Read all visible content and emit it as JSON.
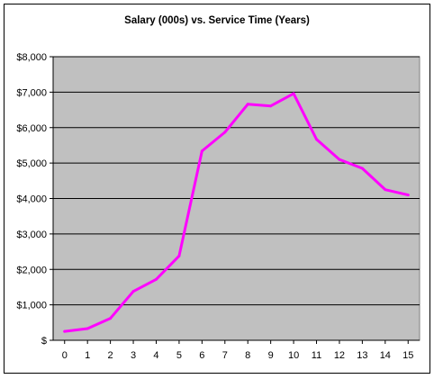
{
  "chart_data": {
    "type": "line",
    "title": "Salary (000s) vs. Service Time (Years)",
    "xlabel": "",
    "ylabel": "",
    "x": [
      0,
      1,
      2,
      3,
      4,
      5,
      6,
      7,
      8,
      9,
      10,
      11,
      12,
      13,
      14,
      15
    ],
    "series": [
      {
        "values": [
          250,
          330,
          620,
          1380,
          1720,
          2380,
          5340,
          5870,
          6660,
          6610,
          6960,
          5670,
          5100,
          4850,
          4250,
          4100
        ]
      }
    ],
    "x_tick_labels": [
      "0",
      "1",
      "2",
      "3",
      "4",
      "5",
      "6",
      "7",
      "8",
      "9",
      "10",
      "11",
      "12",
      "13",
      "14",
      "15"
    ],
    "y_tick_values": [
      0,
      1000,
      2000,
      3000,
      4000,
      5000,
      6000,
      7000,
      8000
    ],
    "y_tick_labels": [
      "$",
      "$1,000",
      "$2,000",
      "$3,000",
      "$4,000",
      "$5,000",
      "$6,000",
      "$7,000",
      "$8,000"
    ],
    "ylim": [
      0,
      8000
    ],
    "xlim": [
      0,
      15
    ],
    "grid": "horizontal major gridlines",
    "legend": "none",
    "colors": {
      "line": "#ff00ff",
      "plot_area": "#c0c0c0",
      "gridline": "#000000",
      "background": "#ffffff"
    }
  }
}
